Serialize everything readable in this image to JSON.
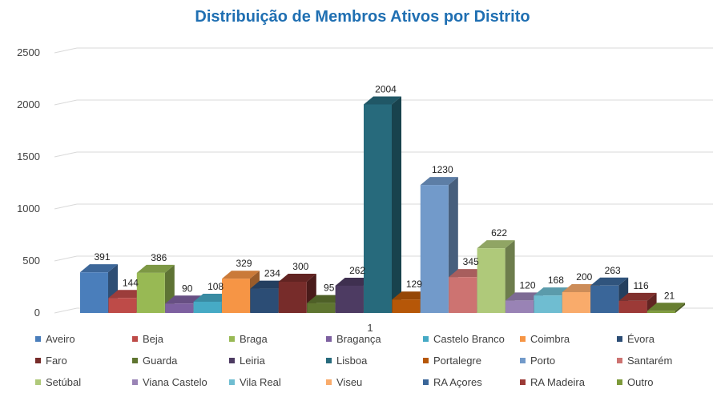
{
  "chart_data": {
    "type": "bar",
    "title": "Distribuição de Membros Ativos por Distrito",
    "categories": [
      "1"
    ],
    "ylim": [
      0,
      2500
    ],
    "yticks": [
      "0",
      "500",
      "1000",
      "1500",
      "2000",
      "2500"
    ],
    "grid": true,
    "legend_position": "bottom",
    "style": "3d-clustered-column",
    "series": [
      {
        "name": "Aveiro",
        "values": [
          391
        ],
        "color": "#4a7ebb"
      },
      {
        "name": "Beja",
        "values": [
          144
        ],
        "color": "#be4b48"
      },
      {
        "name": "Braga",
        "values": [
          386
        ],
        "color": "#98b954"
      },
      {
        "name": "Bragança",
        "values": [
          90
        ],
        "color": "#7d60a0"
      },
      {
        "name": "Castelo Branco",
        "values": [
          108
        ],
        "color": "#46aac5"
      },
      {
        "name": "Coimbra",
        "values": [
          329
        ],
        "color": "#f69545"
      },
      {
        "name": "Évora",
        "values": [
          234
        ],
        "color": "#2c4d75"
      },
      {
        "name": "Faro",
        "values": [
          300
        ],
        "color": "#772c2a"
      },
      {
        "name": "Guarda",
        "values": [
          95
        ],
        "color": "#5f7530"
      },
      {
        "name": "Leiria",
        "values": [
          262
        ],
        "color": "#4d3b62"
      },
      {
        "name": "Lisboa",
        "values": [
          2004
        ],
        "color": "#276a7c"
      },
      {
        "name": "Portalegre",
        "values": [
          129
        ],
        "color": "#b65708"
      },
      {
        "name": "Porto",
        "values": [
          1230
        ],
        "color": "#729aca"
      },
      {
        "name": "Santarém",
        "values": [
          345
        ],
        "color": "#cd7371"
      },
      {
        "name": "Setúbal",
        "values": [
          622
        ],
        "color": "#afc97a"
      },
      {
        "name": "Viana Castelo",
        "values": [
          120
        ],
        "color": "#9983b5"
      },
      {
        "name": "Vila Real",
        "values": [
          168
        ],
        "color": "#6fbdd1"
      },
      {
        "name": "Viseu",
        "values": [
          200
        ],
        "color": "#f9ab6b"
      },
      {
        "name": "RA Açores",
        "values": [
          263
        ],
        "color": "#3a6699"
      },
      {
        "name": "RA Madeira",
        "values": [
          116
        ],
        "color": "#9c3a37"
      },
      {
        "name": "Outro",
        "values": [
          21
        ],
        "color": "#7d9a3a"
      }
    ]
  }
}
